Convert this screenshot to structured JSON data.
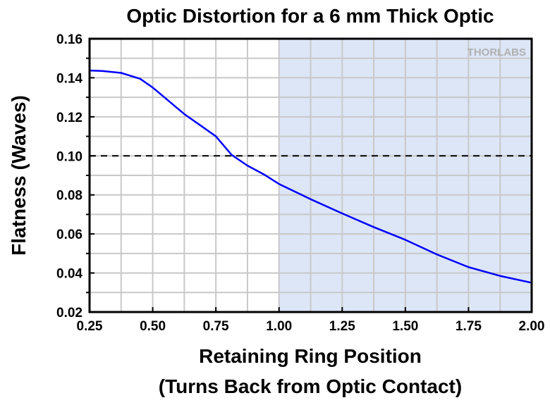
{
  "chart_data": {
    "type": "line",
    "title": "Optic Distortion for a 6 mm Thick Optic",
    "xlabel": "Retaining Ring Position",
    "xlabel2": "(Turns Back from Optic Contact)",
    "ylabel": "Flatness (Waves)",
    "xlim": [
      0.25,
      2.0
    ],
    "ylim": [
      0.02,
      0.16
    ],
    "xticks": [
      "0.25",
      "0.50",
      "0.75",
      "1.00",
      "1.25",
      "1.50",
      "1.75",
      "2.00"
    ],
    "yticks": [
      "0.02",
      "0.04",
      "0.06",
      "0.08",
      "0.10",
      "0.12",
      "0.14",
      "0.16"
    ],
    "grid": true,
    "shaded_region_x": [
      1.0,
      2.0
    ],
    "reference_line_y": 0.1,
    "logo": "THORLABS",
    "colors": {
      "line": "#0000ff",
      "shade": "#dce6f7",
      "grid": "#c8c8c8"
    },
    "series": [
      {
        "name": "Flatness",
        "x": [
          0.25,
          0.3,
          0.375,
          0.45,
          0.5,
          0.56,
          0.625,
          0.69,
          0.75,
          0.8125,
          0.875,
          0.94,
          1.0,
          1.125,
          1.25,
          1.375,
          1.5,
          1.625,
          1.75,
          1.875,
          2.0
        ],
        "y": [
          0.1437,
          0.1435,
          0.1425,
          0.1395,
          0.135,
          0.1285,
          0.1214,
          0.1155,
          0.11,
          0.1005,
          0.095,
          0.0905,
          0.0856,
          0.0778,
          0.0705,
          0.0635,
          0.057,
          0.0495,
          0.043,
          0.0385,
          0.035
        ]
      }
    ]
  }
}
